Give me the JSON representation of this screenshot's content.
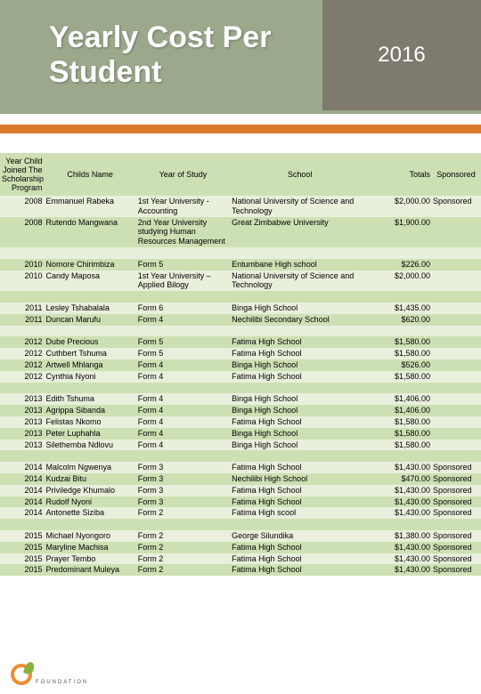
{
  "title": "Yearly Cost Per Student",
  "year_label": "2016",
  "columns": [
    "Year Child Joined The Scholarship Program",
    "Childs Name",
    "Year of Study",
    "School",
    "Totals",
    "Sponsored"
  ],
  "rows": [
    {
      "y": "2008",
      "n": "Emmanuel Rabeka",
      "s": "1st Year University - Accounting",
      "sc": "National University of Science and Technology",
      "t": "$2,000.00",
      "sp": "Sponsored",
      "cls": "a"
    },
    {
      "y": "2008",
      "n": "Rutendo Mangwana",
      "s": "2nd Year University studying Human Resources Management",
      "sc": "Great Zimbabwe University",
      "t": "$1,900.00",
      "sp": "",
      "cls": "b"
    },
    {
      "y": "",
      "n": "",
      "s": "",
      "sc": "",
      "t": "",
      "sp": "",
      "cls": "a"
    },
    {
      "y": "2010",
      "n": "Nomore Chirimbiza",
      "s": "Form 5",
      "sc": "Entumbane High school",
      "t": "$226.00",
      "sp": "",
      "cls": "b"
    },
    {
      "y": "2010",
      "n": "Candy Maposa",
      "s": "1st Year University – Applied Bilogy",
      "sc": "National University of Science and Technology",
      "t": "$2,000.00",
      "sp": "",
      "cls": "a"
    },
    {
      "y": "",
      "n": "",
      "s": "",
      "sc": "",
      "t": "",
      "sp": "",
      "cls": "b"
    },
    {
      "y": "2011",
      "n": "Lesley Tshabalala",
      "s": "Form 6",
      "sc": "Binga High School",
      "t": "$1,435.00",
      "sp": "",
      "cls": "a"
    },
    {
      "y": "2011",
      "n": "Duncan Marufu",
      "s": "Form 4",
      "sc": "Nechilibi Secondary School",
      "t": "$620.00",
      "sp": "",
      "cls": "b"
    },
    {
      "y": "",
      "n": "",
      "s": "",
      "sc": "",
      "t": "",
      "sp": "",
      "cls": "a"
    },
    {
      "y": "2012",
      "n": "Dube Precious",
      "s": "Form 5",
      "sc": "Fatima High School",
      "t": "$1,580.00",
      "sp": "",
      "cls": "b"
    },
    {
      "y": "2012",
      "n": "Cuthbert Tshuma",
      "s": "Form 5",
      "sc": "Fatima High School",
      "t": "$1,580.00",
      "sp": "",
      "cls": "a"
    },
    {
      "y": "2012",
      "n": "Artwell Mhlanga",
      "s": "Form 4",
      "sc": "Binga High School",
      "t": "$526.00",
      "sp": "",
      "cls": "b"
    },
    {
      "y": "2012",
      "n": "Cynthia Nyoni",
      "s": "Form 4",
      "sc": "Fatima High School",
      "t": "$1,580.00",
      "sp": "",
      "cls": "a"
    },
    {
      "y": "",
      "n": "",
      "s": "",
      "sc": "",
      "t": "",
      "sp": "",
      "cls": "b"
    },
    {
      "y": "2013",
      "n": "Edith Tshuma",
      "s": "Form 4",
      "sc": "Binga High School",
      "t": "$1,406.00",
      "sp": "",
      "cls": "a"
    },
    {
      "y": "2013",
      "n": "Agrippa Sibanda",
      "s": "Form 4",
      "sc": "Binga High School",
      "t": "$1,406.00",
      "sp": "",
      "cls": "b"
    },
    {
      "y": "2013",
      "n": "Felistas Nkomo",
      "s": "Form 4",
      "sc": "Fatima High School",
      "t": "$1,580.00",
      "sp": "",
      "cls": "a"
    },
    {
      "y": "2013",
      "n": "Peter Luphahla",
      "s": "Form 4",
      "sc": "Binga High School",
      "t": "$1,580.00",
      "sp": "",
      "cls": "b"
    },
    {
      "y": "2013",
      "n": "Silethemba Ndlovu",
      "s": "Form 4",
      "sc": "Binga High School",
      "t": "$1,580.00",
      "sp": "",
      "cls": "a"
    },
    {
      "y": "",
      "n": "",
      "s": "",
      "sc": "",
      "t": "",
      "sp": "",
      "cls": "b"
    },
    {
      "y": "2014",
      "n": "Malcolm Ngwenya",
      "s": "Form 3",
      "sc": "Fatima High School",
      "t": "$1,430.00",
      "sp": "Sponsored",
      "cls": "a"
    },
    {
      "y": "2014",
      "n": "Kudzai Bitu",
      "s": "Form 3",
      "sc": "Nechilibi High School",
      "t": "$470.00",
      "sp": "Sponsored",
      "cls": "b"
    },
    {
      "y": "2014",
      "n": "Priviledge Khumalo",
      "s": "Form 3",
      "sc": "Fatima High School",
      "t": "$1,430.00",
      "sp": "Sponsored",
      "cls": "a"
    },
    {
      "y": "2014",
      "n": "Rudolf Nyoni",
      "s": "Form 3",
      "sc": "Fatima High School",
      "t": "$1,430.00",
      "sp": "Sponsored",
      "cls": "b"
    },
    {
      "y": "2014",
      "n": "Antonette Siziba",
      "s": "Form 2",
      "sc": "Fatima High scool",
      "t": "$1,430.00",
      "sp": "Sponsored",
      "cls": "a"
    },
    {
      "y": "",
      "n": "",
      "s": "",
      "sc": "",
      "t": "",
      "sp": "",
      "cls": "b"
    },
    {
      "y": "2015",
      "n": "Michael Nyongoro",
      "s": "Form 2",
      "sc": "George Silundika",
      "t": "$1,380.00",
      "sp": "Sponsored",
      "cls": "a"
    },
    {
      "y": "2015",
      "n": "Maryline Machisa",
      "s": "Form 2",
      "sc": "Fatima High School",
      "t": "$1,430.00",
      "sp": "Sponsored",
      "cls": "b"
    },
    {
      "y": "2015",
      "n": "Prayer Tembo",
      "s": "Form 2",
      "sc": "Fatima High School",
      "t": "$1,430.00",
      "sp": "Sponsored",
      "cls": "a"
    },
    {
      "y": "2015",
      "n": "Predominant Muleya",
      "s": "Form 2",
      "sc": "Fatima High School",
      "t": "$1,430.00",
      "sp": "Sponsored",
      "cls": "b"
    }
  ],
  "footer": "FOUNDATION",
  "colors": {
    "header_green": "#9ba88b",
    "header_brown": "#7f7a6e",
    "orange": "#d97a2a",
    "row_a": "#e8f0db",
    "row_b": "#cde0b4"
  }
}
